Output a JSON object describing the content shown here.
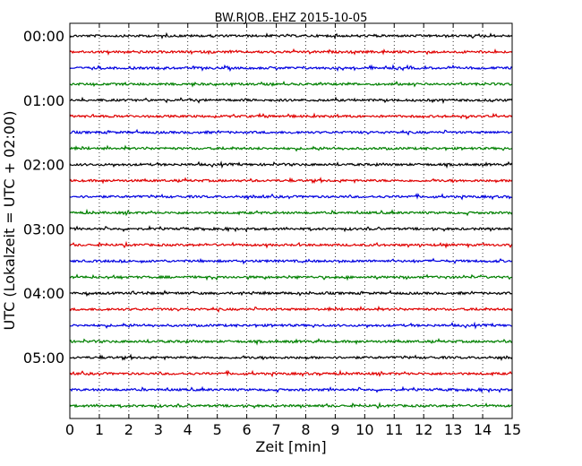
{
  "chart_data": {
    "type": "line",
    "title": "BW.RJOB..EHZ 2015-10-05",
    "xlabel": "Zeit  [min]",
    "ylabel": "UTC (Lokalzeit = UTC + 02:00)",
    "xlim": [
      0,
      15
    ],
    "x_ticks": [
      "0",
      "1",
      "2",
      "3",
      "4",
      "5",
      "6",
      "7",
      "8",
      "9",
      "10",
      "11",
      "12",
      "13",
      "14",
      "15"
    ],
    "y_tick_labels": [
      "00:00",
      "01:00",
      "02:00",
      "03:00",
      "04:00",
      "05:00"
    ],
    "row_interval_minutes": 15,
    "row_count": 24,
    "grid": {
      "vertical_dotted": true
    },
    "series_colors": [
      "#000000",
      "#e00000",
      "#0000e0",
      "#008000"
    ],
    "series": [
      {
        "start": "00:00",
        "color": "#000000"
      },
      {
        "start": "00:15",
        "color": "#e00000"
      },
      {
        "start": "00:30",
        "color": "#0000e0"
      },
      {
        "start": "00:45",
        "color": "#008000"
      },
      {
        "start": "01:00",
        "color": "#000000"
      },
      {
        "start": "01:15",
        "color": "#e00000"
      },
      {
        "start": "01:30",
        "color": "#0000e0"
      },
      {
        "start": "01:45",
        "color": "#008000"
      },
      {
        "start": "02:00",
        "color": "#000000"
      },
      {
        "start": "02:15",
        "color": "#e00000"
      },
      {
        "start": "02:30",
        "color": "#0000e0"
      },
      {
        "start": "02:45",
        "color": "#008000"
      },
      {
        "start": "03:00",
        "color": "#000000"
      },
      {
        "start": "03:15",
        "color": "#e00000"
      },
      {
        "start": "03:30",
        "color": "#0000e0"
      },
      {
        "start": "03:45",
        "color": "#008000"
      },
      {
        "start": "04:00",
        "color": "#000000"
      },
      {
        "start": "04:15",
        "color": "#e00000"
      },
      {
        "start": "04:30",
        "color": "#0000e0"
      },
      {
        "start": "04:45",
        "color": "#008000"
      },
      {
        "start": "05:00",
        "color": "#000000"
      },
      {
        "start": "05:15",
        "color": "#e00000"
      },
      {
        "start": "05:30",
        "color": "#0000e0"
      },
      {
        "start": "05:45",
        "color": "#008000"
      }
    ]
  }
}
